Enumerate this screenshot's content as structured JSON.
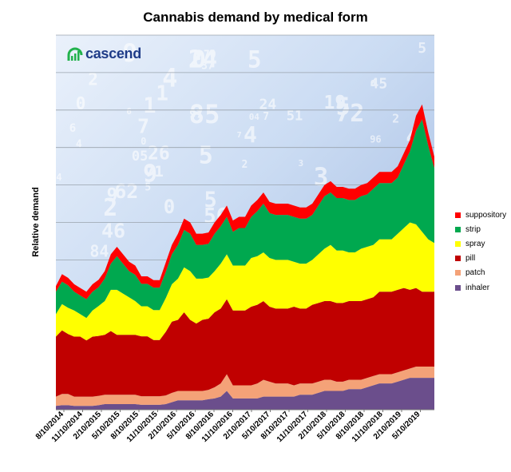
{
  "chart_data": {
    "type": "area",
    "stacked": true,
    "title": "Cannabis demand by medical form",
    "xlabel": "",
    "ylabel": "Relative demand",
    "ylim": [
      0,
      100
    ],
    "grid": true,
    "legend_position": "right",
    "x": [
      "7/2014",
      "8/2014",
      "9/2014",
      "10/2014",
      "11/2014",
      "12/2014",
      "1/2015",
      "2/2015",
      "3/2015",
      "4/2015",
      "5/2015",
      "6/2015",
      "7/2015",
      "8/2015",
      "9/2015",
      "10/2015",
      "11/2015",
      "12/2015",
      "1/2016",
      "2/2016",
      "3/2016",
      "4/2016",
      "5/2016",
      "6/2016",
      "7/2016",
      "8/2016",
      "9/2016",
      "10/2016",
      "11/2016",
      "12/2016",
      "1/2017",
      "2/2017",
      "3/2017",
      "4/2017",
      "5/2017",
      "6/2017",
      "7/2017",
      "8/2017",
      "9/2017",
      "10/2017",
      "11/2017",
      "12/2017",
      "1/2018",
      "2/2018",
      "3/2018",
      "4/2018",
      "5/2018",
      "6/2018",
      "7/2018",
      "8/2018",
      "9/2018",
      "10/2018",
      "11/2018",
      "12/2018",
      "1/2019",
      "2/2019",
      "3/2019",
      "4/2019",
      "5/2019",
      "6/2019",
      "7/2019",
      "8/2019",
      "9/2019"
    ],
    "x_tick_labels": [
      "8/10/2014",
      "11/10/2014",
      "2/10/2015",
      "5/10/2015",
      "8/10/2015",
      "11/10/2015",
      "2/10/2016",
      "5/10/2016",
      "8/10/2016",
      "11/10/2016",
      "2/10/2017",
      "5/10/2017",
      "8/10/2017",
      "11/10/2017",
      "2/10/2018",
      "5/10/2018",
      "8/10/2018",
      "11/10/2018",
      "2/10/2019",
      "5/10/2019"
    ],
    "series": [
      {
        "name": "inhaler",
        "color": "#6b4e8c",
        "values": [
          1,
          1.2,
          1.2,
          1,
          1,
          1,
          1,
          1.2,
          1.5,
          1.5,
          1.5,
          1.5,
          1.5,
          1.5,
          1.3,
          1.3,
          1.3,
          1.3,
          1.5,
          2,
          2.5,
          2.5,
          2.5,
          2.5,
          2.5,
          2.8,
          3,
          3.5,
          5,
          3,
          3,
          3,
          3,
          3,
          3.5,
          3.5,
          3.5,
          3.5,
          3.5,
          3.5,
          4,
          4,
          4,
          4.5,
          5,
          5,
          5,
          5,
          5.5,
          5.5,
          5.5,
          6,
          6.5,
          7,
          7,
          7,
          7.5,
          8,
          8.5,
          8.5,
          8.5,
          8.5,
          8.5
        ]
      },
      {
        "name": "patch",
        "color": "#f4a278",
        "values": [
          2.5,
          3,
          3,
          2.5,
          2.5,
          2.5,
          2.5,
          2.5,
          2.5,
          2.5,
          2.5,
          2.5,
          2.5,
          2.5,
          2.3,
          2.3,
          2.3,
          2.3,
          2.3,
          2.5,
          2.5,
          2.5,
          2.5,
          2.5,
          2.5,
          2.5,
          3,
          3.5,
          4.5,
          3.5,
          3.5,
          3.5,
          3.5,
          4,
          4.5,
          4,
          3.5,
          3.5,
          3.5,
          3,
          3,
          3,
          3,
          3,
          3,
          3,
          2.5,
          2.5,
          2.5,
          2.5,
          2.5,
          2.5,
          2.5,
          2.5,
          2.5,
          2.5,
          2.5,
          2.5,
          2.5,
          3,
          3,
          3,
          3
        ]
      },
      {
        "name": "pill",
        "color": "#c00000",
        "values": [
          16,
          17,
          16,
          16,
          16,
          15,
          16,
          16,
          16,
          17,
          16,
          16,
          16,
          16,
          16,
          16,
          15,
          15,
          17,
          19,
          19,
          21,
          19,
          18,
          19,
          19,
          20,
          20,
          20,
          20,
          20,
          20,
          21,
          21,
          21,
          20,
          20,
          20,
          20,
          21,
          20,
          20,
          21,
          21,
          21,
          21,
          21,
          21,
          21,
          21,
          21,
          21,
          21,
          22,
          22,
          22,
          22,
          22,
          21,
          21,
          20,
          20,
          20
        ]
      },
      {
        "name": "spray",
        "color": "#ffff00",
        "values": [
          6,
          7,
          7,
          7,
          6,
          6,
          7,
          8,
          9,
          11,
          12,
          11,
          10,
          9,
          8,
          8,
          8,
          8,
          9,
          10,
          11,
          12,
          13,
          12,
          11,
          11,
          11,
          12,
          12,
          12,
          12,
          12,
          13,
          13,
          13,
          13,
          13,
          13,
          13,
          12,
          12,
          12,
          12,
          13,
          14,
          15,
          14,
          14,
          13,
          13,
          14,
          14,
          14,
          14,
          14,
          14,
          15,
          16,
          18,
          17,
          16,
          14,
          13
        ]
      },
      {
        "name": "strip",
        "color": "#00a84f",
        "values": [
          6,
          6,
          6,
          5,
          5,
          5,
          5,
          5,
          6,
          7,
          9,
          8,
          7,
          7,
          6,
          6,
          6,
          6,
          7,
          8,
          9,
          10,
          10,
          9,
          9,
          9,
          10,
          10,
          10,
          9,
          10,
          10,
          11,
          12,
          13,
          12,
          12,
          12,
          12,
          12,
          12,
          12,
          12,
          13,
          14,
          14,
          14,
          14,
          14,
          14,
          14,
          14,
          15,
          15,
          15,
          15,
          15,
          17,
          19,
          25,
          30,
          25,
          20
        ]
      },
      {
        "name": "suppository",
        "color": "#ff0000",
        "values": [
          1.5,
          2,
          2,
          2,
          2,
          2,
          2,
          2,
          2,
          2.5,
          2.5,
          2.5,
          2.5,
          2.5,
          2,
          2,
          2,
          2,
          2.5,
          2.5,
          3,
          3,
          3,
          3,
          3,
          3,
          3,
          3,
          3,
          3,
          3,
          3,
          3,
          3,
          3,
          3,
          3,
          3,
          3,
          3,
          3,
          3,
          3,
          3,
          3,
          3,
          3,
          3,
          3,
          3,
          3,
          3,
          3,
          3,
          3,
          3,
          3,
          3,
          3,
          4,
          4,
          3.5,
          3
        ]
      }
    ]
  }
}
